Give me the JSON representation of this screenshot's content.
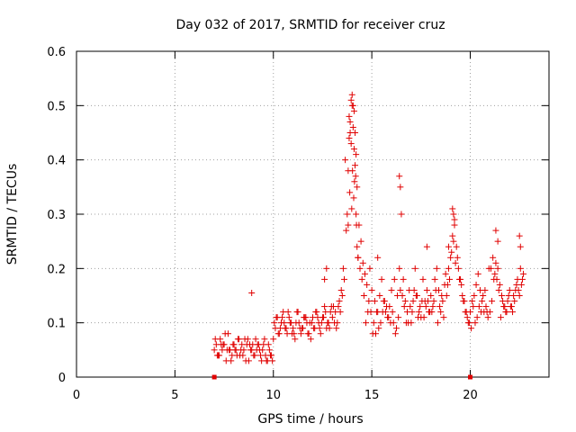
{
  "chart_data": {
    "type": "scatter",
    "title": "Day 032 of 2017, SRMTID for receiver cruz",
    "xlabel": "GPS time / hours",
    "ylabel": "SRMTID / TECUs",
    "xlim": [
      0,
      24
    ],
    "ylim": [
      0,
      0.6
    ],
    "x_ticks": [
      0,
      5,
      10,
      15,
      20
    ],
    "y_ticks": [
      0,
      0.1,
      0.2,
      0.3,
      0.4,
      0.5,
      0.6
    ],
    "x_tick_labels": [
      "0",
      "5",
      "10",
      "15",
      "20"
    ],
    "y_tick_labels": [
      "0",
      "0.1",
      "0.2",
      "0.3",
      "0.4",
      "0.5",
      "0.6"
    ],
    "grid": true,
    "marker": "+",
    "marker_color": "#e00000",
    "series": [
      {
        "name": "SRMTID",
        "x": [
          7.0,
          7.1,
          7.2,
          7.3,
          7.4,
          7.5,
          7.6,
          7.7,
          7.8,
          7.9,
          8.0,
          8.1,
          8.2,
          8.3,
          8.4,
          8.5,
          8.6,
          8.7,
          8.8,
          8.9,
          9.0,
          9.1,
          9.2,
          9.3,
          9.4,
          9.5,
          9.6,
          9.7,
          9.8,
          9.9,
          10.0,
          10.1,
          10.2,
          10.3,
          10.4,
          10.5,
          10.6,
          10.7,
          10.8,
          10.9,
          11.0,
          11.1,
          11.2,
          11.3,
          11.4,
          11.5,
          11.6,
          11.7,
          11.8,
          11.9,
          12.0,
          12.1,
          12.2,
          12.3,
          12.4,
          12.5,
          12.6,
          12.7,
          12.8,
          12.9,
          13.0,
          13.1,
          13.2,
          13.3,
          13.4,
          13.5,
          13.6,
          13.7,
          13.8,
          13.9,
          14.0,
          14.1,
          14.2,
          14.3,
          14.4,
          14.5,
          14.6,
          14.7,
          14.8,
          14.9,
          15.0,
          15.1,
          15.2,
          15.3,
          15.4,
          15.5,
          15.6,
          15.7,
          15.8,
          15.9,
          16.0,
          16.1,
          16.2,
          16.3,
          16.4,
          16.5,
          16.6,
          16.7,
          16.8,
          16.9,
          17.0,
          17.1,
          17.2,
          17.3,
          17.4,
          17.5,
          17.6,
          17.7,
          17.8,
          17.9,
          18.0,
          18.1,
          18.2,
          18.3,
          18.4,
          18.5,
          18.6,
          18.7,
          18.8,
          18.9,
          19.0,
          19.1,
          19.2,
          19.3,
          19.4,
          19.5,
          19.6,
          19.7,
          19.8,
          19.9,
          20.0,
          20.1,
          20.2,
          20.3,
          20.4,
          20.5,
          20.6,
          20.7,
          20.8,
          20.9,
          21.0,
          21.1,
          21.2,
          21.3,
          21.4,
          21.5,
          21.6,
          21.7,
          21.8,
          21.9,
          22.0,
          22.1,
          22.2,
          22.3,
          22.4,
          22.5,
          22.6,
          22.7,
          7.05,
          7.25,
          7.45,
          7.65,
          7.85,
          8.05,
          8.25,
          8.45,
          8.65,
          8.85,
          9.05,
          9.25,
          9.45,
          9.65,
          9.85,
          10.05,
          10.25,
          10.45,
          10.65,
          10.85,
          11.05,
          11.25,
          11.45,
          11.65,
          11.85,
          12.05,
          12.25,
          12.45,
          12.65,
          12.85,
          13.05,
          13.25,
          13.45,
          13.65,
          13.85,
          14.05,
          14.25,
          14.45,
          14.65,
          14.85,
          15.05,
          15.25,
          15.45,
          15.65,
          15.85,
          16.05,
          16.25,
          16.45,
          16.65,
          16.85,
          17.05,
          17.25,
          17.45,
          17.65,
          17.85,
          18.05,
          18.25,
          18.45,
          18.65,
          18.85,
          19.05,
          19.25,
          19.45,
          19.65,
          19.85,
          20.05,
          20.25,
          20.45,
          20.65,
          20.85,
          21.05,
          21.25,
          21.45,
          21.65,
          21.85,
          22.05,
          22.25,
          22.45,
          22.65,
          7.15,
          7.35,
          7.55,
          7.75,
          7.95,
          8.15,
          8.35,
          8.55,
          8.75,
          8.95,
          9.15,
          9.35,
          9.55,
          9.75,
          9.95,
          10.15,
          10.35,
          10.55,
          10.75,
          10.95,
          11.15,
          11.35,
          11.55,
          11.75,
          11.95,
          12.15,
          12.35,
          12.55,
          12.75,
          12.95,
          13.15,
          13.35,
          13.55,
          13.75,
          13.95,
          14.15,
          14.35,
          14.55,
          14.75,
          14.95,
          15.15,
          15.35,
          15.55,
          15.75,
          15.95,
          16.15,
          16.35,
          16.55,
          16.75,
          16.95,
          17.15,
          17.35,
          17.55,
          17.75,
          17.95,
          18.15,
          18.35,
          18.55,
          18.75,
          18.95,
          19.15,
          19.35,
          19.55,
          19.75,
          19.95,
          20.15,
          20.35,
          20.55,
          20.75,
          20.95,
          21.15,
          21.35,
          21.55,
          21.75,
          21.95,
          22.15,
          22.35,
          22.55,
          13.9,
          13.95,
          14.0,
          14.05,
          14.1,
          14.15,
          14.2,
          13.85,
          14.02,
          14.12,
          14.08,
          14.18,
          13.88,
          13.98,
          14.22,
          14.25,
          14.3,
          13.8,
          16.4,
          16.45,
          19.1,
          19.15,
          19.2,
          21.3,
          21.4,
          22.5,
          22.55,
          8.9,
          15.3,
          17.8,
          18.9,
          12.6,
          12.7
        ],
        "y": [
          0.05,
          0.06,
          0.04,
          0.07,
          0.05,
          0.06,
          0.03,
          0.08,
          0.05,
          0.04,
          0.06,
          0.05,
          0.07,
          0.04,
          0.06,
          0.05,
          0.03,
          0.07,
          0.06,
          0.05,
          0.04,
          0.07,
          0.06,
          0.05,
          0.03,
          0.06,
          0.04,
          0.03,
          0.05,
          0.04,
          0.07,
          0.09,
          0.11,
          0.08,
          0.1,
          0.12,
          0.09,
          0.08,
          0.11,
          0.1,
          0.09,
          0.07,
          0.12,
          0.1,
          0.08,
          0.09,
          0.11,
          0.1,
          0.08,
          0.07,
          0.11,
          0.09,
          0.12,
          0.1,
          0.08,
          0.11,
          0.13,
          0.09,
          0.1,
          0.12,
          0.11,
          0.1,
          0.09,
          0.13,
          0.12,
          0.15,
          0.18,
          0.27,
          0.38,
          0.45,
          0.5,
          0.42,
          0.3,
          0.22,
          0.2,
          0.18,
          0.15,
          0.1,
          0.12,
          0.2,
          0.16,
          0.1,
          0.08,
          0.12,
          0.15,
          0.18,
          0.14,
          0.12,
          0.11,
          0.13,
          0.16,
          0.1,
          0.08,
          0.15,
          0.2,
          0.3,
          0.18,
          0.14,
          0.12,
          0.16,
          0.1,
          0.14,
          0.2,
          0.15,
          0.12,
          0.11,
          0.18,
          0.14,
          0.16,
          0.12,
          0.15,
          0.13,
          0.18,
          0.2,
          0.16,
          0.12,
          0.14,
          0.17,
          0.15,
          0.2,
          0.22,
          0.26,
          0.28,
          0.24,
          0.2,
          0.18,
          0.15,
          0.14,
          0.12,
          0.1,
          0.12,
          0.14,
          0.15,
          0.17,
          0.19,
          0.16,
          0.14,
          0.12,
          0.13,
          0.11,
          0.12,
          0.14,
          0.18,
          0.21,
          0.2,
          0.17,
          0.15,
          0.13,
          0.12,
          0.14,
          0.16,
          0.13,
          0.15,
          0.16,
          0.18,
          0.15,
          0.17,
          0.19,
          0.07,
          0.04,
          0.06,
          0.05,
          0.03,
          0.05,
          0.07,
          0.04,
          0.06,
          0.05,
          0.04,
          0.06,
          0.05,
          0.03,
          0.04,
          0.1,
          0.08,
          0.11,
          0.09,
          0.1,
          0.08,
          0.12,
          0.09,
          0.11,
          0.1,
          0.09,
          0.11,
          0.1,
          0.12,
          0.09,
          0.13,
          0.1,
          0.16,
          0.4,
          0.48,
          0.46,
          0.35,
          0.25,
          0.19,
          0.14,
          0.08,
          0.12,
          0.1,
          0.14,
          0.11,
          0.12,
          0.09,
          0.16,
          0.13,
          0.1,
          0.12,
          0.15,
          0.13,
          0.11,
          0.14,
          0.12,
          0.16,
          0.13,
          0.11,
          0.17,
          0.23,
          0.21,
          0.18,
          0.14,
          0.11,
          0.09,
          0.1,
          0.13,
          0.15,
          0.12,
          0.2,
          0.19,
          0.16,
          0.14,
          0.12,
          0.13,
          0.14,
          0.16,
          0.18,
          0.04,
          0.06,
          0.08,
          0.05,
          0.06,
          0.04,
          0.05,
          0.07,
          0.03,
          0.06,
          0.05,
          0.04,
          0.07,
          0.06,
          0.03,
          0.11,
          0.09,
          0.1,
          0.12,
          0.08,
          0.1,
          0.09,
          0.11,
          0.08,
          0.1,
          0.12,
          0.09,
          0.11,
          0.1,
          0.13,
          0.12,
          0.14,
          0.2,
          0.3,
          0.43,
          0.39,
          0.28,
          0.21,
          0.17,
          0.12,
          0.14,
          0.09,
          0.12,
          0.13,
          0.1,
          0.18,
          0.11,
          0.15,
          0.1,
          0.13,
          0.16,
          0.11,
          0.14,
          0.13,
          0.12,
          0.14,
          0.1,
          0.15,
          0.19,
          0.18,
          0.25,
          0.22,
          0.17,
          0.12,
          0.1,
          0.13,
          0.11,
          0.12,
          0.16,
          0.2,
          0.22,
          0.18,
          0.11,
          0.13,
          0.15,
          0.12,
          0.17,
          0.2,
          0.47,
          0.51,
          0.52,
          0.5,
          0.49,
          0.45,
          0.41,
          0.44,
          0.38,
          0.36,
          0.33,
          0.37,
          0.34,
          0.31,
          0.28,
          0.24,
          0.22,
          0.28,
          0.37,
          0.35,
          0.31,
          0.3,
          0.29,
          0.27,
          0.25,
          0.26,
          0.24,
          0.155,
          0.22,
          0.24,
          0.24,
          0.18,
          0.2
        ]
      }
    ],
    "x_axis_markers": [
      7.0,
      20.0
    ]
  }
}
